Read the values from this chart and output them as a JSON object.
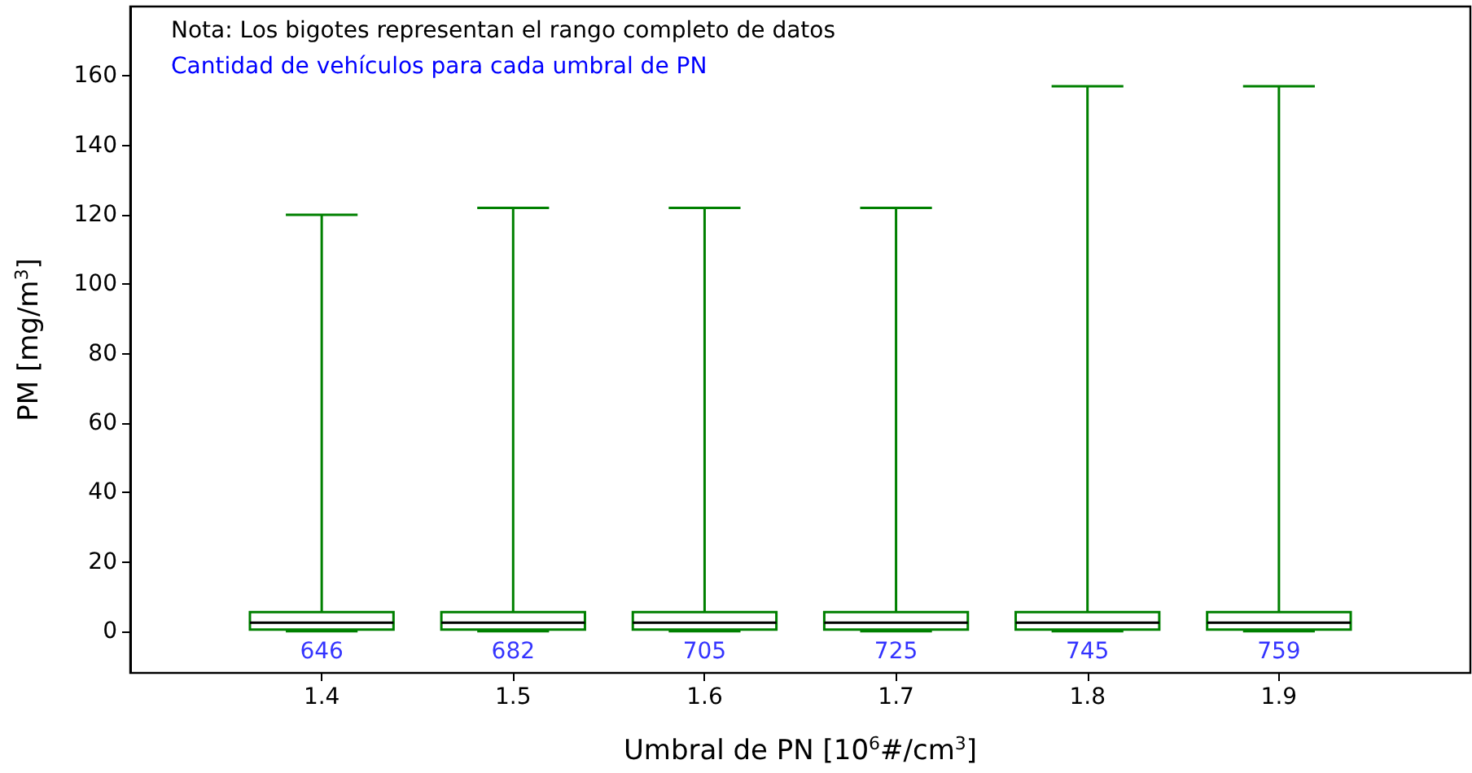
{
  "chart_data": {
    "type": "box",
    "xlabel": "Umbral de PN [10$^{6}$#/cm$^{3}$]",
    "ylabel": "PM [mg/m$^{3}$]",
    "x": [
      1.4,
      1.5,
      1.6,
      1.7,
      1.8,
      1.9
    ],
    "boxes": [
      {
        "low": 0,
        "q1": 0.5,
        "median": 2.5,
        "q3": 5.5,
        "high": 120
      },
      {
        "low": 0,
        "q1": 0.5,
        "median": 2.5,
        "q3": 5.5,
        "high": 122
      },
      {
        "low": 0,
        "q1": 0.5,
        "median": 2.5,
        "q3": 5.5,
        "high": 122
      },
      {
        "low": 0,
        "q1": 0.5,
        "median": 2.5,
        "q3": 5.5,
        "high": 122
      },
      {
        "low": 0,
        "q1": 0.5,
        "median": 2.5,
        "q3": 5.5,
        "high": 157
      },
      {
        "low": 0,
        "q1": 0.5,
        "median": 2.5,
        "q3": 5.5,
        "high": 157
      }
    ],
    "color": "#008000",
    "xlim": [
      1.3,
      2.0
    ],
    "xticks": [
      1.4,
      1.5,
      1.6,
      1.7,
      1.8,
      1.9
    ],
    "ylim": [
      -12,
      180
    ],
    "yticks": [
      0,
      20,
      40,
      60,
      80,
      100,
      120,
      140,
      160
    ],
    "grid": false,
    "annotations": [
      "Nota: Los bigotes representan el rango completo de datos",
      "Cantidad de vehículos para cada umbral de PN",
      "646",
      "682",
      "705",
      "725",
      "745",
      "759"
    ]
  }
}
